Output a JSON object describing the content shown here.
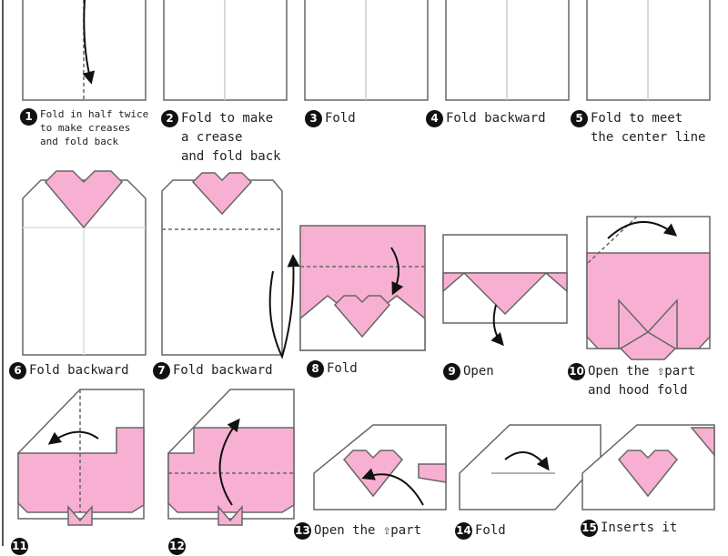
{
  "colors": {
    "paper_pink": "#f7b0d2",
    "paper_white": "#ffffff",
    "outline": "#555555",
    "arrow": "#111111",
    "badge": "#111111"
  },
  "steps": [
    {
      "num": "1",
      "lines": [
        "Fold in half twice",
        "to make creases",
        "and fold back"
      ]
    },
    {
      "num": "2",
      "lines": [
        "Fold to make",
        "a crease",
        "and fold back"
      ]
    },
    {
      "num": "3",
      "lines": [
        "Fold"
      ]
    },
    {
      "num": "4",
      "lines": [
        "Fold backward"
      ]
    },
    {
      "num": "5",
      "lines": [
        "Fold to meet",
        "the center line"
      ]
    },
    {
      "num": "6",
      "lines": [
        "Fold backward"
      ]
    },
    {
      "num": "7",
      "lines": [
        "Fold backward"
      ]
    },
    {
      "num": "8",
      "lines": [
        "Fold"
      ]
    },
    {
      "num": "9",
      "lines": [
        "Open"
      ]
    },
    {
      "num": "10",
      "lines": [
        "Open the ⇧part",
        "and hood fold"
      ]
    },
    {
      "num": "11",
      "lines": [
        ""
      ]
    },
    {
      "num": "12",
      "lines": [
        ""
      ]
    },
    {
      "num": "13",
      "lines": [
        "Open the ⇧part"
      ]
    },
    {
      "num": "14",
      "lines": [
        "Fold"
      ]
    },
    {
      "num": "15",
      "lines": [
        "Inserts it"
      ]
    }
  ]
}
